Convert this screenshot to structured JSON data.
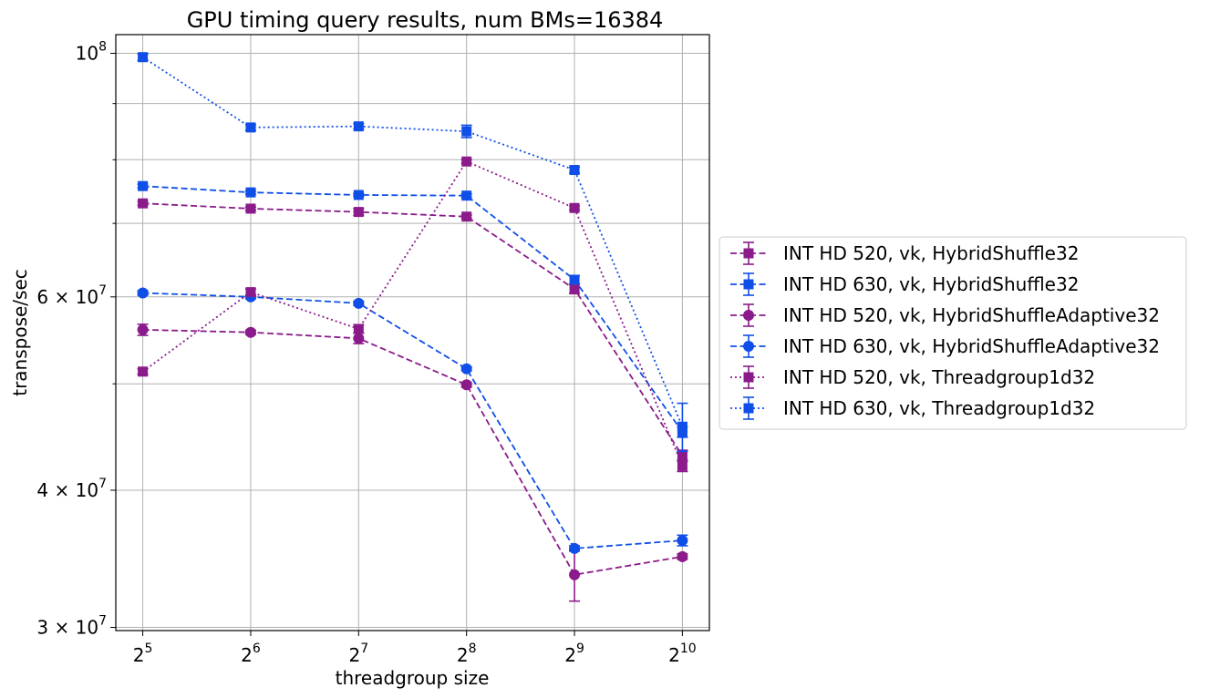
{
  "chart_data": {
    "type": "line",
    "title": "GPU timing query results, num BMs=16384",
    "xlabel": "threadgroup size",
    "ylabel": "transpose/sec",
    "x": [
      5,
      6,
      7,
      8,
      9,
      10
    ],
    "x_tick_labels": [
      {
        "base": "2",
        "exp": "5"
      },
      {
        "base": "2",
        "exp": "6"
      },
      {
        "base": "2",
        "exp": "7"
      },
      {
        "base": "2",
        "exp": "8"
      },
      {
        "base": "2",
        "exp": "9"
      },
      {
        "base": "2",
        "exp": "10"
      }
    ],
    "y_scale": "log",
    "ylim": [
      29800000,
      104000000
    ],
    "y_tick_labels": [
      {
        "value": 30000000,
        "mantissa": "3",
        "exp": "7",
        "prefix": "3 × 10"
      },
      {
        "value": 40000000,
        "mantissa": "4",
        "exp": "7",
        "prefix": "4 × 10"
      },
      {
        "value": 60000000,
        "mantissa": "6",
        "exp": "7",
        "prefix": "6 × 10"
      },
      {
        "value": 100000000,
        "mantissa": "",
        "exp": "8",
        "prefix": "10"
      }
    ],
    "y_minor_ticks": [
      50000000,
      70000000,
      80000000,
      90000000
    ],
    "grid": true,
    "legend_position": "right-outside",
    "series": [
      {
        "name": "INT HD 520, vk, HybridShuffle32",
        "color": "#8b1a8b",
        "marker": "square",
        "linestyle": "dashed",
        "values": [
          73000000,
          72200000,
          71700000,
          71000000,
          61000000,
          43000000
        ],
        "errors": [
          300000,
          250000,
          500000,
          250000,
          600000,
          500000
        ]
      },
      {
        "name": "INT HD 630, vk, HybridShuffle32",
        "color": "#0f4fe8",
        "marker": "square",
        "linestyle": "dashed",
        "values": [
          75700000,
          74700000,
          74300000,
          74200000,
          62200000,
          45200000
        ],
        "errors": [
          300000,
          250000,
          250000,
          250000,
          550000,
          500000
        ]
      },
      {
        "name": "INT HD 520, vk, HybridShuffleAdaptive32",
        "color": "#8b1a8b",
        "marker": "circle",
        "linestyle": "dashed",
        "values": [
          56000000,
          55700000,
          55000000,
          49900000,
          33500000,
          34800000
        ],
        "errors": [
          650000,
          250000,
          600000,
          250000,
          1800000,
          200000
        ]
      },
      {
        "name": "INT HD 630, vk, HybridShuffleAdaptive32",
        "color": "#0f4fe8",
        "marker": "circle",
        "linestyle": "dashed",
        "values": [
          60500000,
          60000000,
          59200000,
          51600000,
          35400000,
          36000000
        ],
        "errors": [
          300000,
          250000,
          250000,
          200000,
          200000,
          400000
        ]
      },
      {
        "name": "INT HD 520, vk, Threadgroup1d32",
        "color": "#8b1a8b",
        "marker": "square",
        "linestyle": "dotted",
        "values": [
          51300000,
          60600000,
          56100000,
          79700000,
          72300000,
          42100000
        ],
        "errors": [
          300000,
          400000,
          500000,
          300000,
          300000,
          500000
        ]
      },
      {
        "name": "INT HD 630, vk, Threadgroup1d32",
        "color": "#0f4fe8",
        "marker": "square",
        "linestyle": "dotted",
        "values": [
          99200000,
          85600000,
          85800000,
          84900000,
          78300000,
          45700000
        ],
        "errors": [
          700000,
          500000,
          500000,
          1100000,
          500000,
          2300000
        ]
      }
    ]
  }
}
